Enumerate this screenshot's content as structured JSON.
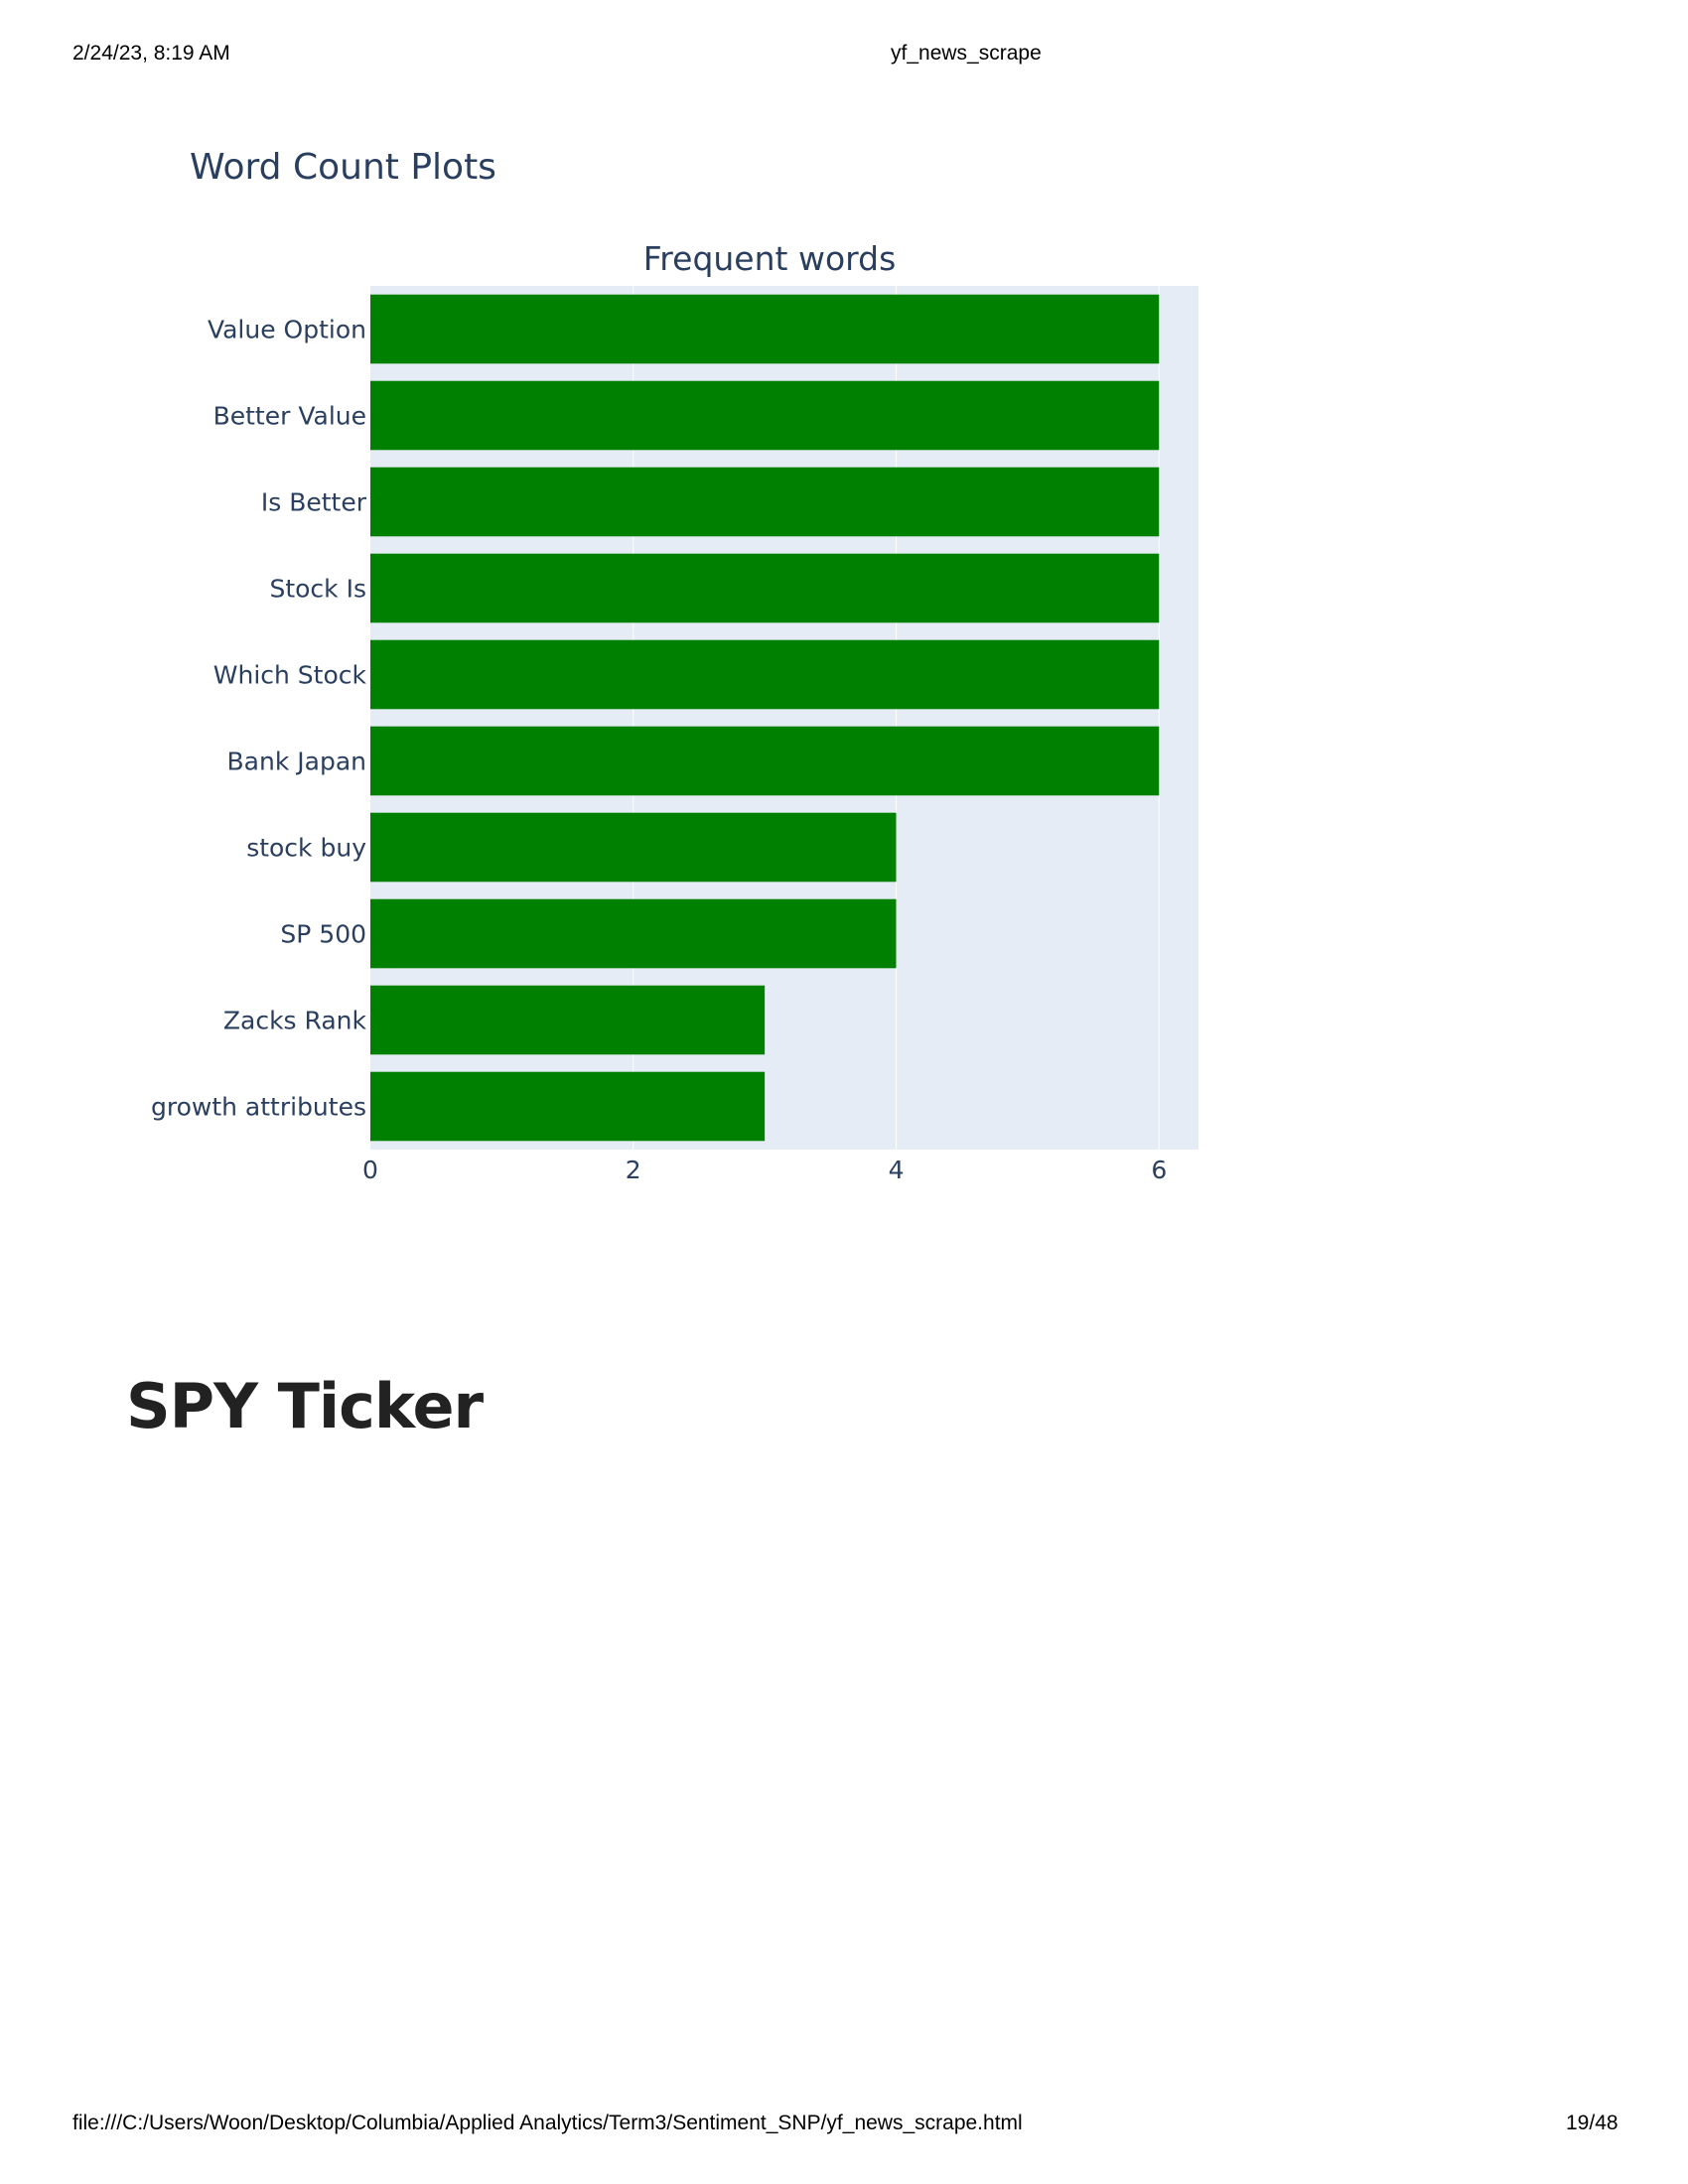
{
  "print_header": {
    "date": "2/24/23, 8:19 AM",
    "doc_title": "yf_news_scrape"
  },
  "print_footer": {
    "url": "file:///C:/Users/Woon/Desktop/Columbia/Applied Analytics/Term3/Sentiment_SNP/yf_news_scrape.html",
    "page": "19/48"
  },
  "section_title": "Word Count Plots",
  "ticker_heading": "SPY Ticker",
  "chart_data": {
    "type": "bar",
    "orientation": "horizontal",
    "title": "Frequent words",
    "categories": [
      "Value Option",
      "Better Value",
      "Is Better",
      "Stock Is",
      "Which Stock",
      "Bank Japan",
      "stock buy",
      "SP 500",
      "Zacks Rank",
      "growth attributes"
    ],
    "values": [
      6,
      6,
      6,
      6,
      6,
      6,
      4,
      4,
      3,
      3
    ],
    "xlim": [
      0,
      6.3
    ],
    "xticks": [
      0,
      2,
      4,
      6
    ],
    "xlabel": "",
    "ylabel": "",
    "bar_color": "#008000",
    "plot_bg": "#e5ecf6",
    "grid": true
  }
}
